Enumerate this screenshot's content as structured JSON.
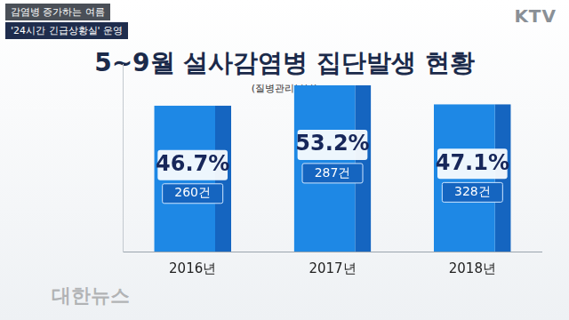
{
  "chart_data": {
    "type": "bar",
    "title": "5~9월 설사감염병 집단발생 현황",
    "subtitle": "(질병관리본부)",
    "categories": [
      "2016년",
      "2017년",
      "2018년"
    ],
    "values": [
      46.7,
      53.2,
      47.1
    ],
    "value_labels": [
      "46.7%",
      "53.2%",
      "47.1%"
    ],
    "counts": [
      260,
      287,
      328
    ],
    "count_labels": [
      "260건",
      "287건",
      "328건"
    ],
    "color": "#1e88e5",
    "ylim": [
      0,
      60
    ],
    "grid": false,
    "tick_labels": "x",
    "data_labels": true
  },
  "header": {
    "tags": [
      "감염병 증가하는 여름",
      "'24시간 긴급상황실' 운영"
    ],
    "logo": "KTV",
    "watermark": "대한뉴스"
  }
}
